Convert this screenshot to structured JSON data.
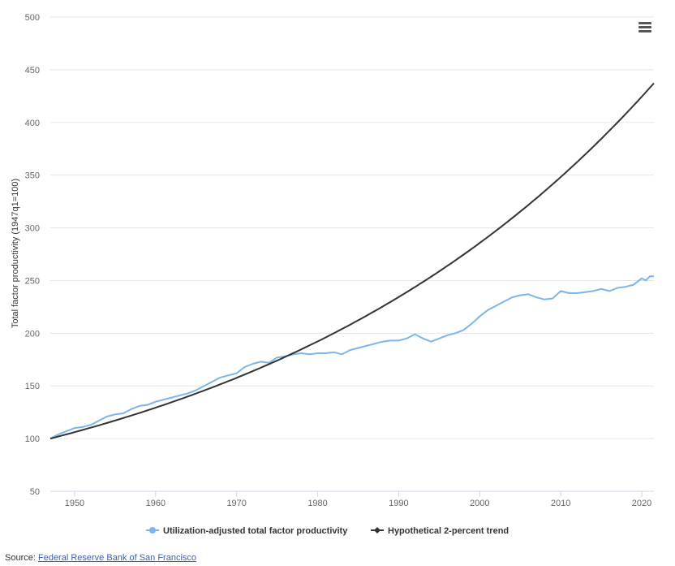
{
  "chart_data": {
    "type": "line",
    "ylabel": "Total factor productivity (1947q1=100)",
    "xlabel": "",
    "xlim": [
      1947,
      2021.5
    ],
    "ylim": [
      50,
      500
    ],
    "y_ticks": [
      50,
      100,
      150,
      200,
      250,
      300,
      350,
      400,
      450,
      500
    ],
    "x_ticks": [
      1950,
      1960,
      1970,
      1980,
      1990,
      2000,
      2010,
      2020
    ],
    "grid": "horizontal",
    "legend_position": "bottom",
    "series": [
      {
        "name": "Utilization-adjusted total factor productivity",
        "color": "#7cb5ec",
        "marker": "circle",
        "x": [
          1947,
          1948,
          1949,
          1950,
          1951,
          1952,
          1953,
          1954,
          1955,
          1956,
          1957,
          1958,
          1959,
          1960,
          1961,
          1962,
          1963,
          1964,
          1965,
          1966,
          1967,
          1968,
          1969,
          1970,
          1971,
          1972,
          1973,
          1974,
          1975,
          1976,
          1977,
          1978,
          1979,
          1980,
          1981,
          1982,
          1983,
          1984,
          1985,
          1986,
          1987,
          1988,
          1989,
          1990,
          1991,
          1992,
          1993,
          1994,
          1995,
          1996,
          1997,
          1998,
          1999,
          2000,
          2001,
          2002,
          2003,
          2004,
          2005,
          2006,
          2007,
          2008,
          2009,
          2010,
          2011,
          2012,
          2013,
          2014,
          2015,
          2016,
          2017,
          2018,
          2019,
          2020,
          2020.5,
          2021,
          2021.5
        ],
        "y": [
          100,
          104,
          107,
          110,
          111,
          113,
          117,
          121,
          123,
          124,
          128,
          131,
          132,
          135,
          137,
          139,
          141,
          143,
          146,
          150,
          154,
          158,
          160,
          162,
          168,
          171,
          173,
          172,
          177,
          178,
          180,
          181,
          180,
          181,
          181,
          182,
          180,
          184,
          186,
          188,
          190,
          192,
          193,
          193,
          195,
          199,
          195,
          192,
          195,
          198,
          200,
          203,
          209,
          216,
          222,
          226,
          230,
          234,
          236,
          237,
          234,
          232,
          233,
          240,
          238,
          238,
          239,
          240,
          242,
          240,
          243,
          244,
          246,
          252,
          250,
          254,
          254
        ]
      },
      {
        "name": "Hypothetical 2-percent trend",
        "color": "#333333",
        "marker": "diamond",
        "start_year": 1947,
        "end_year": 2021.5,
        "start_value": 100,
        "annual_growth_rate": 0.02
      }
    ]
  },
  "source": {
    "label": "Source:",
    "link_text": "Federal Reserve Bank of San Francisco"
  },
  "menu": {
    "icon": "hamburger-menu-icon"
  }
}
